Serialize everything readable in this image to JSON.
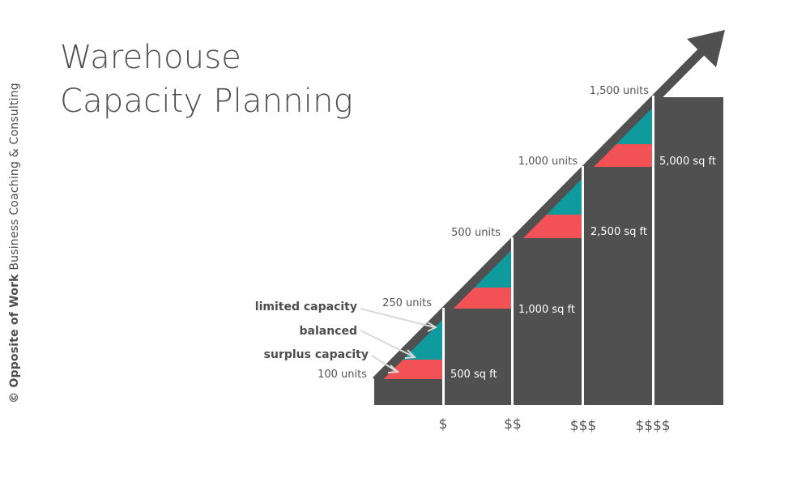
{
  "title": {
    "line1": "Warehouse",
    "line2": "Capacity Planning"
  },
  "credit": {
    "bold": "© Opposite of Work",
    "rest": " Business Coaching & Consulting"
  },
  "colors": {
    "step": "#505050",
    "teal": "#0f9a9e",
    "coral": "#f25255",
    "text": "#555555"
  },
  "units": [
    "100 units",
    "250 units",
    "500 units",
    "1,000 units",
    "1,500 units"
  ],
  "areas": [
    "500 sq ft",
    "1,000 sq ft",
    "2,500 sq ft",
    "5,000 sq ft"
  ],
  "costs": [
    "$",
    "$$",
    "$$$",
    "$$$$"
  ],
  "legend": {
    "limited": "limited capacity",
    "balanced": "balanced",
    "surplus": "surplus capacity"
  },
  "arrow_icon": "growth-arrow-icon"
}
